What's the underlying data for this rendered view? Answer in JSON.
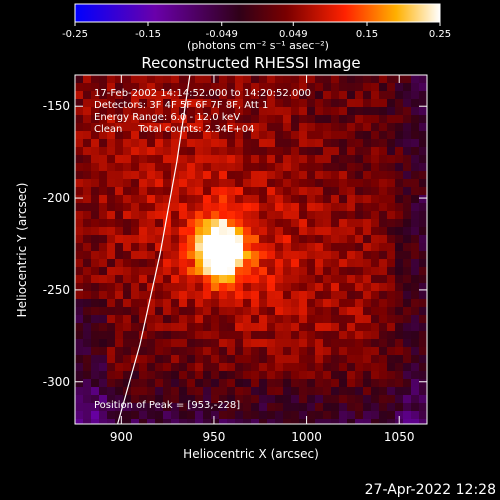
{
  "chart_data": {
    "type": "heatmap",
    "title": "Reconstructed RHESSI Image",
    "xlabel": "Heliocentric X (arcsec)",
    "ylabel": "Heliocentric Y (arcsec)",
    "xlim": [
      875,
      1065
    ],
    "ylim": [
      -323,
      -133
    ],
    "xticks": [
      900,
      950,
      1000,
      1050
    ],
    "yticks": [
      -150,
      -200,
      -250,
      -300
    ],
    "colorbar": {
      "min": -0.25,
      "max": 0.25,
      "ticks": [
        "-0.25",
        "-0.15",
        "-0.049",
        "0.049",
        "0.15",
        "0.25"
      ],
      "unit_label": "(photons cm⁻² s⁻¹ asec⁻²)",
      "colors": [
        "#0000ff",
        "#6a00aa",
        "#300018",
        "#7a0000",
        "#ff2200",
        "#ffb000",
        "#ffffff"
      ]
    },
    "annotations": {
      "time_range": "17-Feb-2002 14:14:52.000 to 14:20:52.000",
      "detectors": "Detectors: 3F 4F 5F 6F 7F 8F, Att 1",
      "energy": "Energy Range: 6.0 - 12.0 keV",
      "algorithm": "Clean     Total counts: 2.34E+04",
      "peak": "Position of Peak = [953,-228]"
    },
    "peak": {
      "x": 953,
      "y": -228
    },
    "limb_arc": [
      [
        937,
        -133
      ],
      [
        930,
        -180
      ],
      [
        921,
        -230
      ],
      [
        910,
        -280
      ],
      [
        898,
        -323
      ]
    ],
    "timestamp": "27-Apr-2022 12:28"
  }
}
